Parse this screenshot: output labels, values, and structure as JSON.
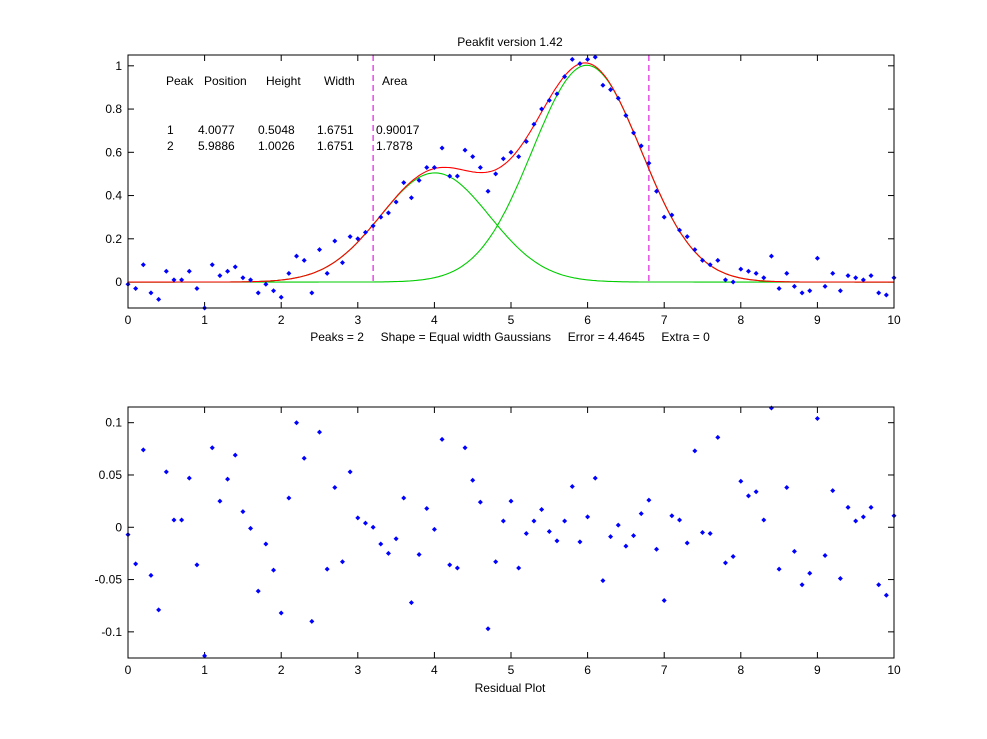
{
  "figure": {
    "background": "#ffffff",
    "colors": {
      "points": "#0000ff",
      "fit": "#ff0000",
      "components": "#00cc00",
      "limits": "#e020e0"
    }
  },
  "chart_data": [
    {
      "type": "scatter",
      "title": "Peakfit version 1.42",
      "xlabel": "",
      "ylabel": "",
      "xlim": [
        0,
        10
      ],
      "ylim": [
        -0.12,
        1.05
      ],
      "xticks": [
        0,
        1,
        2,
        3,
        4,
        5,
        6,
        7,
        8,
        9,
        10
      ],
      "yticks": [
        0,
        0.2,
        0.4,
        0.6,
        0.8,
        1
      ],
      "grid": false,
      "footer": "Peaks = 2     Shape = Equal width Gaussians     Error = 4.4645     Extra = 0",
      "results_table": {
        "headers": [
          "Peak",
          "Position",
          "Height",
          "Width",
          "Area"
        ],
        "rows": [
          [
            "1",
            "4.0077",
            "0.5048",
            "1.6751",
            "0.90017"
          ],
          [
            "2",
            "5.9886",
            "1.0026",
            "1.6751",
            "1.7878"
          ]
        ]
      },
      "vertical_markers": [
        3.2,
        6.8
      ],
      "components": [
        {
          "position": 4.0077,
          "height": 0.5048,
          "width": 1.6751
        },
        {
          "position": 5.9886,
          "height": 1.0026,
          "width": 1.6751
        }
      ],
      "x": [
        0.0,
        0.1,
        0.2,
        0.3,
        0.4,
        0.5,
        0.6,
        0.7,
        0.8,
        0.9,
        1.0,
        1.1,
        1.2,
        1.3,
        1.4,
        1.5,
        1.6,
        1.7,
        1.8,
        1.9,
        2.0,
        2.1,
        2.2,
        2.3,
        2.4,
        2.5,
        2.6,
        2.7,
        2.8,
        2.9,
        3.0,
        3.1,
        3.2,
        3.3,
        3.4,
        3.5,
        3.6,
        3.7,
        3.8,
        3.9,
        4.0,
        4.1,
        4.2,
        4.3,
        4.4,
        4.5,
        4.6,
        4.7,
        4.8,
        4.9,
        5.0,
        5.1,
        5.2,
        5.3,
        5.4,
        5.5,
        5.6,
        5.7,
        5.8,
        5.9,
        6.0,
        6.1,
        6.2,
        6.3,
        6.4,
        6.5,
        6.6,
        6.7,
        6.8,
        6.9,
        7.0,
        7.1,
        7.2,
        7.3,
        7.4,
        7.5,
        7.6,
        7.7,
        7.8,
        7.9,
        8.0,
        8.1,
        8.2,
        8.3,
        8.4,
        8.5,
        8.6,
        8.7,
        8.8,
        8.9,
        9.0,
        9.1,
        9.2,
        9.3,
        9.4,
        9.5,
        9.6,
        9.7,
        9.8,
        9.9,
        10.0
      ],
      "y": [
        -0.01,
        -0.03,
        0.08,
        -0.05,
        -0.08,
        0.05,
        0.01,
        0.01,
        0.05,
        -0.03,
        -0.12,
        0.08,
        0.03,
        0.05,
        0.07,
        0.02,
        0.01,
        -0.05,
        -0.01,
        -0.04,
        -0.07,
        0.04,
        0.12,
        0.1,
        -0.05,
        0.15,
        0.04,
        0.19,
        0.09,
        0.21,
        0.2,
        0.23,
        0.26,
        0.3,
        0.32,
        0.37,
        0.46,
        0.39,
        0.47,
        0.53,
        0.53,
        0.62,
        0.49,
        0.49,
        0.61,
        0.58,
        0.53,
        0.42,
        0.5,
        0.57,
        0.6,
        0.58,
        0.65,
        0.73,
        0.8,
        0.84,
        0.87,
        0.95,
        1.03,
        1.01,
        1.03,
        1.04,
        0.91,
        0.89,
        0.85,
        0.77,
        0.69,
        0.63,
        0.55,
        0.42,
        0.3,
        0.31,
        0.24,
        0.21,
        0.15,
        0.1,
        0.08,
        0.1,
        0.01,
        0.0,
        0.06,
        0.05,
        0.04,
        0.02,
        0.12,
        -0.03,
        0.04,
        -0.02,
        -0.05,
        -0.04,
        0.11,
        -0.02,
        0.04,
        -0.04,
        0.03,
        0.02,
        0.01,
        0.03,
        -0.05,
        -0.06,
        0.02
      ]
    },
    {
      "type": "scatter",
      "title": "",
      "xlabel": "Residual Plot",
      "ylabel": "",
      "xlim": [
        0,
        10
      ],
      "ylim": [
        -0.125,
        0.115
      ],
      "xticks": [
        0,
        1,
        2,
        3,
        4,
        5,
        6,
        7,
        8,
        9,
        10
      ],
      "yticks": [
        -0.1,
        -0.05,
        0,
        0.05,
        0.1
      ],
      "grid": false,
      "x": [
        0.0,
        0.1,
        0.2,
        0.3,
        0.4,
        0.5,
        0.6,
        0.7,
        0.8,
        0.9,
        1.0,
        1.1,
        1.2,
        1.3,
        1.4,
        1.5,
        1.6,
        1.7,
        1.8,
        1.9,
        2.0,
        2.1,
        2.2,
        2.3,
        2.4,
        2.5,
        2.6,
        2.7,
        2.8,
        2.9,
        3.0,
        3.1,
        3.2,
        3.3,
        3.4,
        3.5,
        3.6,
        3.7,
        3.8,
        3.9,
        4.0,
        4.1,
        4.2,
        4.3,
        4.4,
        4.5,
        4.6,
        4.7,
        4.8,
        4.9,
        5.0,
        5.1,
        5.2,
        5.3,
        5.4,
        5.5,
        5.6,
        5.7,
        5.8,
        5.9,
        6.0,
        6.1,
        6.2,
        6.3,
        6.4,
        6.5,
        6.6,
        6.7,
        6.8,
        6.9,
        7.0,
        7.1,
        7.2,
        7.3,
        7.4,
        7.5,
        7.6,
        7.7,
        7.8,
        7.9,
        8.0,
        8.1,
        8.2,
        8.3,
        8.4,
        8.5,
        8.6,
        8.7,
        8.8,
        8.9,
        9.0,
        9.1,
        9.2,
        9.3,
        9.4,
        9.5,
        9.6,
        9.7,
        9.8,
        9.9,
        10.0
      ],
      "y": [
        -0.007,
        -0.035,
        0.074,
        -0.046,
        -0.079,
        0.053,
        0.007,
        0.007,
        0.047,
        -0.036,
        -0.123,
        0.076,
        0.025,
        0.046,
        0.069,
        0.015,
        -0.001,
        -0.061,
        -0.016,
        -0.041,
        -0.082,
        0.028,
        0.1,
        0.066,
        -0.09,
        0.091,
        -0.04,
        0.038,
        -0.033,
        0.053,
        0.009,
        0.004,
        0.0,
        -0.016,
        -0.025,
        -0.011,
        0.028,
        -0.072,
        -0.026,
        0.018,
        -0.002,
        0.084,
        -0.036,
        -0.039,
        0.076,
        0.045,
        0.024,
        -0.097,
        -0.033,
        0.006,
        0.025,
        -0.039,
        -0.006,
        0.006,
        0.017,
        -0.004,
        -0.013,
        0.006,
        0.039,
        -0.014,
        0.01,
        0.047,
        -0.051,
        -0.009,
        0.002,
        -0.018,
        -0.008,
        0.013,
        0.026,
        -0.021,
        -0.07,
        0.011,
        0.007,
        -0.015,
        0.073,
        -0.005,
        -0.006,
        0.086,
        -0.034,
        -0.028,
        0.044,
        0.03,
        0.034,
        0.007,
        0.114,
        -0.04,
        0.038,
        -0.023,
        -0.055,
        -0.044,
        0.104,
        -0.027,
        0.035,
        -0.049,
        0.019,
        0.006,
        0.01,
        0.019,
        -0.055,
        -0.065,
        0.011
      ]
    }
  ]
}
